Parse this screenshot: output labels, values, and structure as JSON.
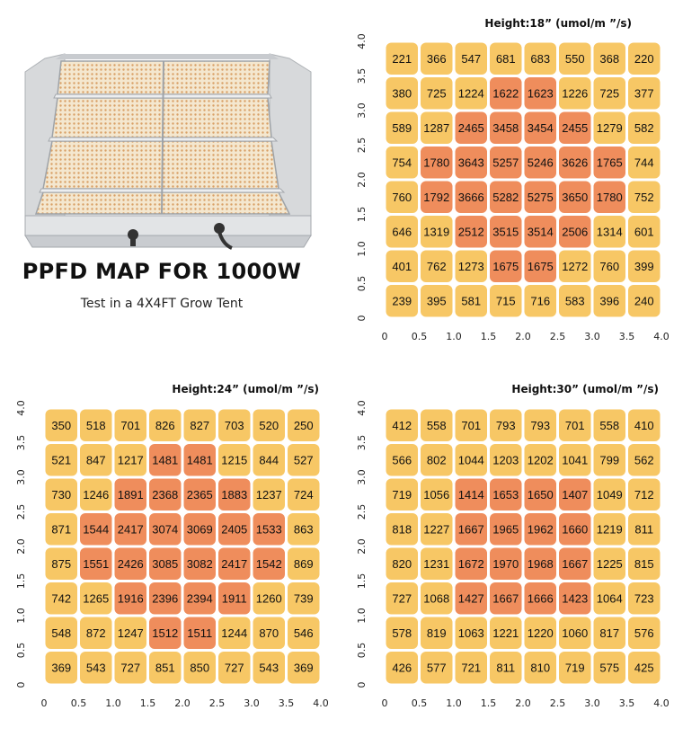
{
  "headline": "PPFD MAP FOR 1000W",
  "subline": "Test in a 4X4FT Grow Tent",
  "colors": {
    "cell_low": "#f7c765",
    "cell_high": "#ef8d5c",
    "high_threshold": 1400
  },
  "chart_data": [
    {
      "type": "heatmap",
      "title": "Height:18” (umol/m ”/s)",
      "x_ticks": [
        "0",
        "0.5",
        "1.0",
        "1.5",
        "2.0",
        "2.5",
        "3.0",
        "3.5",
        "4.0"
      ],
      "y_ticks": [
        "0",
        "0.5",
        "1.0",
        "1.5",
        "2.0",
        "2.5",
        "3.0",
        "3.5",
        "4.0"
      ],
      "xlim": [
        0,
        4
      ],
      "ylim": [
        0,
        4
      ],
      "rows": [
        [
          221,
          366,
          547,
          681,
          683,
          550,
          368,
          220
        ],
        [
          380,
          725,
          1224,
          1622,
          1623,
          1226,
          725,
          377
        ],
        [
          589,
          1287,
          2465,
          3458,
          3454,
          2455,
          1279,
          582
        ],
        [
          754,
          1780,
          3643,
          5257,
          5246,
          3626,
          1765,
          744
        ],
        [
          760,
          1792,
          3666,
          5282,
          5275,
          3650,
          1780,
          752
        ],
        [
          646,
          1319,
          2512,
          3515,
          3514,
          2506,
          1314,
          601
        ],
        [
          401,
          762,
          1273,
          1675,
          1675,
          1272,
          760,
          399
        ],
        [
          239,
          395,
          581,
          715,
          716,
          583,
          396,
          240
        ]
      ]
    },
    {
      "type": "heatmap",
      "title": "Height:24” (umol/m ”/s)",
      "x_ticks": [
        "0",
        "0.5",
        "1.0",
        "1.5",
        "2.0",
        "2.5",
        "3.0",
        "3.5",
        "4.0"
      ],
      "y_ticks": [
        "0",
        "0.5",
        "1.0",
        "1.5",
        "2.0",
        "2.5",
        "3.0",
        "3.5",
        "4.0"
      ],
      "xlim": [
        0,
        4
      ],
      "ylim": [
        0,
        4
      ],
      "rows": [
        [
          350,
          518,
          701,
          826,
          827,
          703,
          520,
          250
        ],
        [
          521,
          847,
          1217,
          1481,
          1481,
          1215,
          844,
          527
        ],
        [
          730,
          1246,
          1891,
          2368,
          2365,
          1883,
          1237,
          724
        ],
        [
          871,
          1544,
          2417,
          3074,
          3069,
          2405,
          1533,
          863
        ],
        [
          875,
          1551,
          2426,
          3085,
          3082,
          2417,
          1542,
          869
        ],
        [
          742,
          1265,
          1916,
          2396,
          2394,
          1911,
          1260,
          739
        ],
        [
          548,
          872,
          1247,
          1512,
          1511,
          1244,
          870,
          546
        ],
        [
          369,
          543,
          727,
          851,
          850,
          727,
          543,
          369
        ]
      ]
    },
    {
      "type": "heatmap",
      "title": "Height:30” (umol/m ”/s)",
      "x_ticks": [
        "0",
        "0.5",
        "1.0",
        "1.5",
        "2.0",
        "2.5",
        "3.0",
        "3.5",
        "4.0"
      ],
      "y_ticks": [
        "0",
        "0.5",
        "1.0",
        "1.5",
        "2.0",
        "2.5",
        "3.0",
        "3.5",
        "4.0"
      ],
      "xlim": [
        0,
        4
      ],
      "ylim": [
        0,
        4
      ],
      "rows": [
        [
          412,
          558,
          701,
          793,
          793,
          701,
          558,
          410
        ],
        [
          566,
          802,
          1044,
          1203,
          1202,
          1041,
          799,
          562
        ],
        [
          719,
          1056,
          1414,
          1653,
          1650,
          1407,
          1049,
          712
        ],
        [
          818,
          1227,
          1667,
          1965,
          1962,
          1660,
          1219,
          811
        ],
        [
          820,
          1231,
          1672,
          1970,
          1968,
          1667,
          1225,
          815
        ],
        [
          727,
          1068,
          1427,
          1667,
          1666,
          1423,
          1064,
          723
        ],
        [
          578,
          819,
          1063,
          1221,
          1220,
          1060,
          817,
          576
        ],
        [
          426,
          577,
          721,
          811,
          810,
          719,
          575,
          425
        ]
      ]
    }
  ]
}
